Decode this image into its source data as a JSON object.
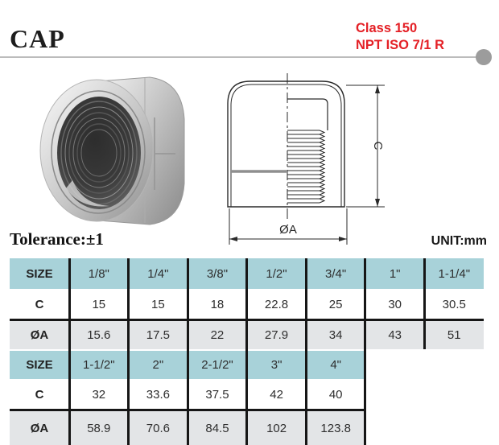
{
  "header": {
    "title": "CAP",
    "class_label": "Class 150",
    "standard_label": "NPT ISO 7/1 R"
  },
  "notes": {
    "tolerance": "Tolerance:±1",
    "unit": "UNIT:mm"
  },
  "drawing": {
    "height_dim_label": "C",
    "diameter_dim_label": "ØA"
  },
  "colors": {
    "accent_red": "#e42026",
    "table_header_teal": "#a8d2d9",
    "table_row_gray": "#e3e5e7",
    "grid_black": "#161616",
    "rule_gray": "#bcbcbc",
    "dot_gray": "#9c9c9c"
  },
  "table": {
    "groups": [
      {
        "rows": [
          {
            "label": "SIZE",
            "type": "size",
            "cells": [
              "1/8\"",
              "1/4\"",
              "3/8\"",
              "1/2\"",
              "3/4\"",
              "1\"",
              "1-1/4\""
            ]
          },
          {
            "label": "C",
            "type": "c",
            "cells": [
              "15",
              "15",
              "18",
              "22.8",
              "25",
              "30",
              "30.5"
            ]
          },
          {
            "label": "ØA",
            "type": "a",
            "cells": [
              "15.6",
              "17.5",
              "22",
              "27.9",
              "34",
              "43",
              "51"
            ]
          }
        ]
      },
      {
        "rows": [
          {
            "label": "SIZE",
            "type": "size",
            "cells": [
              "1-1/2\"",
              "2\"",
              "2-1/2\"",
              "3\"",
              "4\""
            ]
          },
          {
            "label": "C",
            "type": "c",
            "cells": [
              "32",
              "33.6",
              "37.5",
              "42",
              "40"
            ]
          },
          {
            "label": "ØA",
            "type": "a",
            "cells": [
              "58.9",
              "70.6",
              "84.5",
              "102",
              "123.8"
            ]
          }
        ]
      }
    ]
  }
}
